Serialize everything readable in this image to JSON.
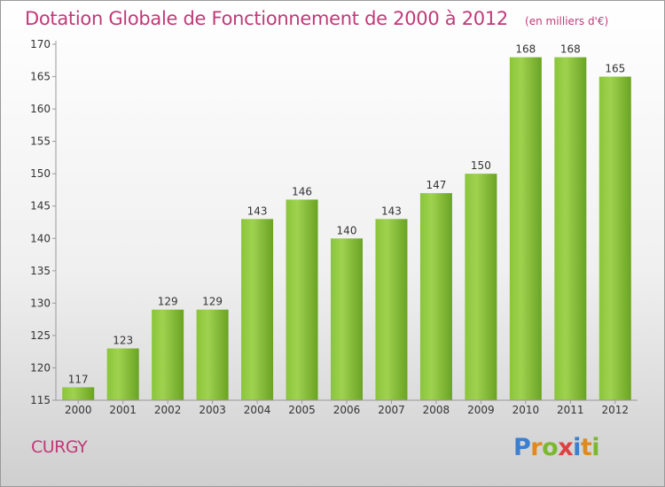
{
  "title": "Dotation Globale de Fonctionnement de 2000 à 2012",
  "unit_note": "(en milliers d'€)",
  "place": "CURGY",
  "logo": {
    "letters": [
      "P",
      "r",
      "o",
      "x",
      "i",
      "t",
      "i"
    ],
    "colors": [
      "#3a7fd0",
      "#e08a1e",
      "#7cb82f",
      "#e04040",
      "#3a7fd0",
      "#e08a1e",
      "#7cb82f"
    ]
  },
  "colors": {
    "bar": "#7cbd2e",
    "bar_light": "#9bd24e",
    "title": "#c03a78"
  },
  "chart_data": {
    "type": "bar",
    "title": "Dotation Globale de Fonctionnement de 2000 à 2012",
    "categories": [
      "2000",
      "2001",
      "2002",
      "2003",
      "2004",
      "2005",
      "2006",
      "2007",
      "2008",
      "2009",
      "2010",
      "2011",
      "2012"
    ],
    "values": [
      117,
      123,
      129,
      129,
      143,
      146,
      140,
      143,
      147,
      150,
      168,
      168,
      165
    ],
    "ylim": [
      115,
      170
    ],
    "yticks": [
      115,
      120,
      125,
      130,
      135,
      140,
      145,
      150,
      155,
      160,
      165,
      170
    ],
    "grid": false,
    "xlabel": "",
    "ylabel": ""
  }
}
